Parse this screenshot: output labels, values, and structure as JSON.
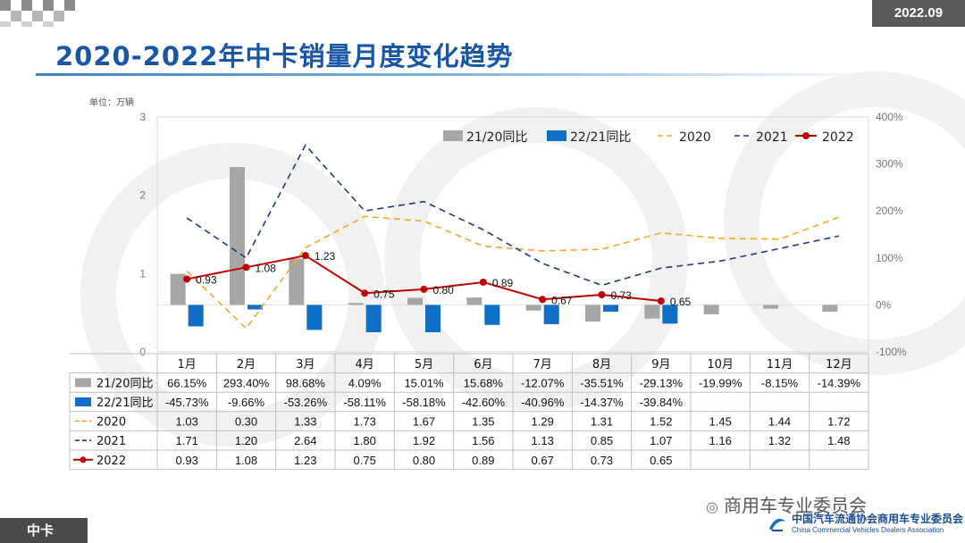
{
  "header": {
    "date": "2022.09",
    "title": "2020-2022年中卡销量月度变化趋势",
    "unit_label": "单位：万辆"
  },
  "footer": {
    "category_tag": "中卡",
    "wechat_account": "商用车专业委员会",
    "org_cn": "中国汽车流通协会商用车专业委员会",
    "org_en": "China Commercial Vehicles Dealers Association"
  },
  "colors": {
    "title": "#1a56a6",
    "bar_21_20": "#a6a6a6",
    "bar_22_21": "#0f6fc6",
    "line_2020": "#f5a623",
    "line_2021": "#1f3a7a",
    "line_2022": "#c00000"
  },
  "chart_data": {
    "type": "bar+line",
    "title": "2020-2022年中卡销量月度变化趋势",
    "categories": [
      "1月",
      "2月",
      "3月",
      "4月",
      "5月",
      "6月",
      "7月",
      "8月",
      "9月",
      "10月",
      "11月",
      "12月"
    ],
    "left_axis": {
      "label": "单位：万辆",
      "min": 0,
      "max": 3,
      "ticks": [
        "0",
        "1",
        "2",
        "3"
      ]
    },
    "right_axis": {
      "min": -100,
      "max": 400,
      "ticks": [
        "-100%",
        "0%",
        "100%",
        "200%",
        "300%",
        "400%"
      ]
    },
    "bar_series": [
      {
        "name": "21/20同比",
        "values": [
          66.15,
          293.4,
          98.68,
          4.09,
          15.01,
          15.68,
          -12.07,
          -35.51,
          -29.13,
          -19.99,
          -8.15,
          -14.39
        ],
        "labels": [
          "66.15%",
          "293.40%",
          "98.68%",
          "4.09%",
          "15.01%",
          "15.68%",
          "-12.07%",
          "-35.51%",
          "-29.13%",
          "-19.99%",
          "-8.15%",
          "-14.39%"
        ]
      },
      {
        "name": "22/21同比",
        "values": [
          -45.73,
          -9.66,
          -53.26,
          -58.11,
          -58.18,
          -42.6,
          -40.96,
          -14.37,
          -39.84,
          null,
          null,
          null
        ],
        "labels": [
          "-45.73%",
          "-9.66%",
          "-53.26%",
          "-58.11%",
          "-58.18%",
          "-42.60%",
          "-40.96%",
          "-14.37%",
          "-39.84%",
          "",
          "",
          ""
        ]
      }
    ],
    "line_series": [
      {
        "name": "2020",
        "values": [
          1.03,
          0.3,
          1.33,
          1.73,
          1.67,
          1.35,
          1.29,
          1.31,
          1.52,
          1.45,
          1.44,
          1.72
        ],
        "labels": [
          "1.03",
          "0.30",
          "1.33",
          "1.73",
          "1.67",
          "1.35",
          "1.29",
          "1.31",
          "1.52",
          "1.45",
          "1.44",
          "1.72"
        ]
      },
      {
        "name": "2021",
        "values": [
          1.71,
          1.2,
          2.64,
          1.8,
          1.92,
          1.56,
          1.13,
          0.85,
          1.07,
          1.16,
          1.32,
          1.48
        ],
        "labels": [
          "1.71",
          "1.20",
          "2.64",
          "1.80",
          "1.92",
          "1.56",
          "1.13",
          "0.85",
          "1.07",
          "1.16",
          "1.32",
          "1.48"
        ]
      },
      {
        "name": "2022",
        "values": [
          0.93,
          1.08,
          1.23,
          0.75,
          0.8,
          0.89,
          0.67,
          0.73,
          0.65,
          null,
          null,
          null
        ],
        "labels": [
          "0.93",
          "1.08",
          "1.23",
          "0.75",
          "0.80",
          "0.89",
          "0.67",
          "0.73",
          "0.65",
          "",
          "",
          ""
        ]
      }
    ],
    "legend": [
      "21/20同比",
      "22/21同比",
      "2020",
      "2021",
      "2022"
    ]
  }
}
